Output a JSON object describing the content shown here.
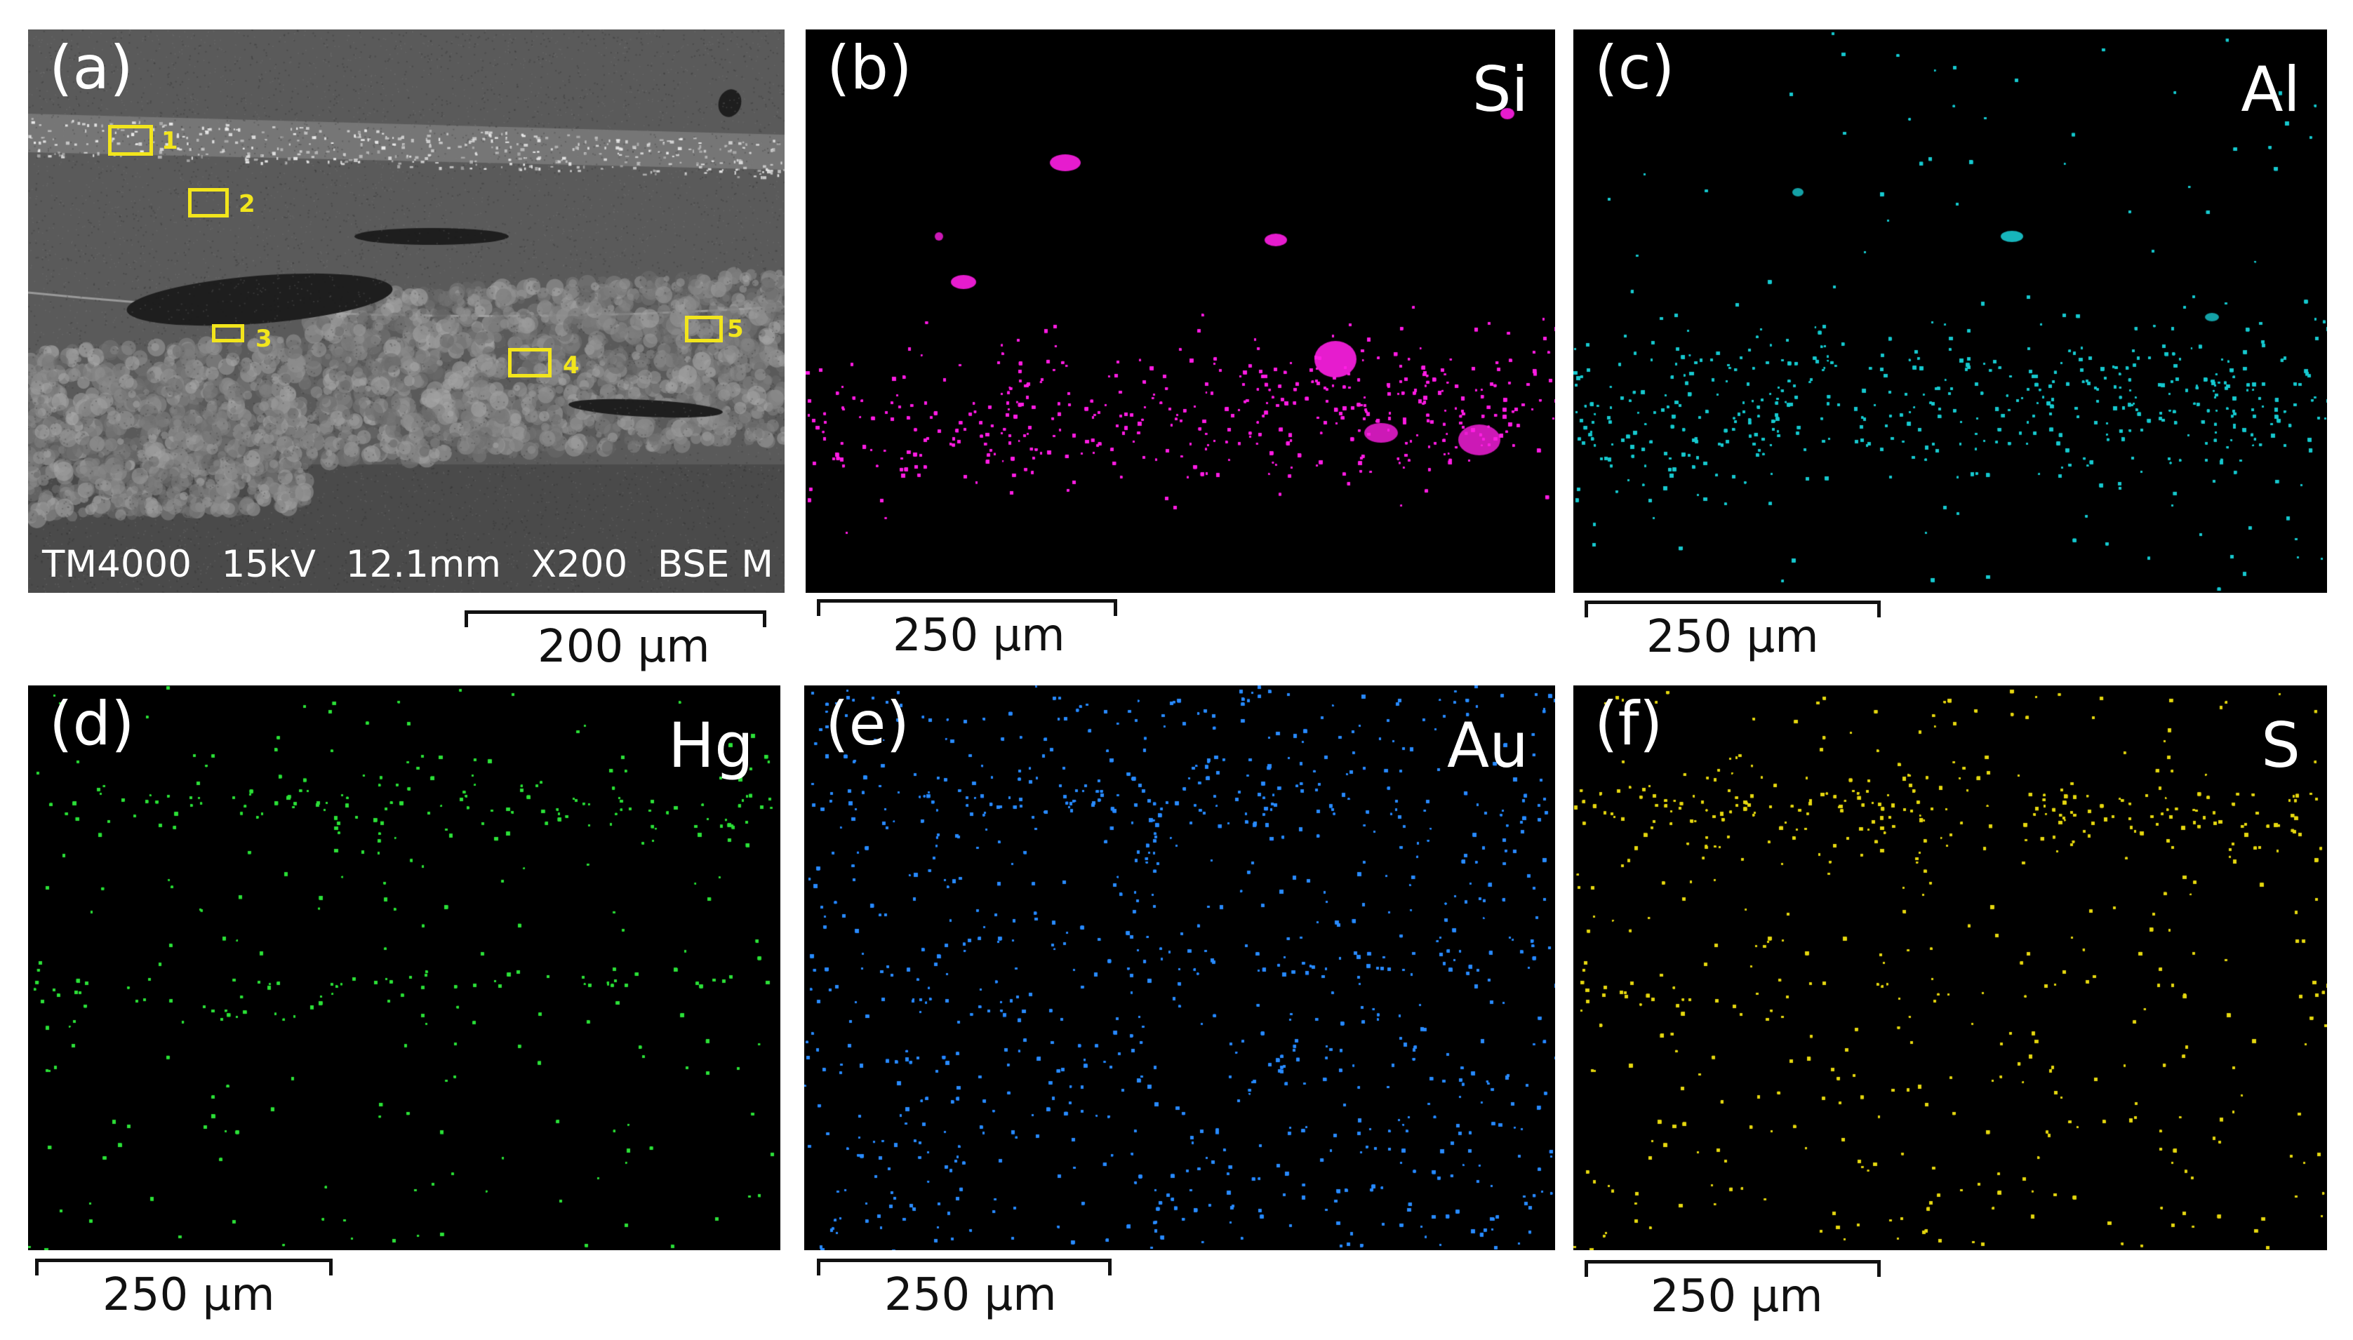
{
  "panels": [
    {
      "id": "a",
      "label": "(a)",
      "element": "",
      "color": "#b8b8b8"
    },
    {
      "id": "b",
      "label": "(b)",
      "element": "Si",
      "color": "#ff1fe4"
    },
    {
      "id": "c",
      "label": "(c)",
      "element": "Al",
      "color": "#19c9cf"
    },
    {
      "id": "d",
      "label": "(d)",
      "element": "Hg",
      "color": "#2ee03a"
    },
    {
      "id": "e",
      "label": "(e)",
      "element": "Au",
      "color": "#2b8cff"
    },
    {
      "id": "f",
      "label": "(f)",
      "element": "S",
      "color": "#e6d812"
    }
  ],
  "sem": {
    "instrument": "TM4000",
    "voltage": "15kV",
    "working_distance": "12.1mm",
    "magnification": "X200",
    "detector": "BSE M",
    "regions": [
      "1",
      "2",
      "3",
      "4",
      "5"
    ],
    "region_color": "#f2e51c"
  },
  "scale_bars": {
    "a": "200 μm",
    "b": "250 μm",
    "c": "250 μm",
    "d": "250 μm",
    "e": "250 μm",
    "f": "250 μm"
  }
}
